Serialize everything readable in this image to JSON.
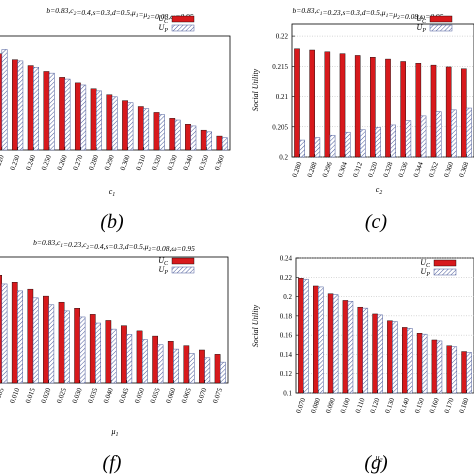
{
  "colors": {
    "uc_fill": "#d7191c",
    "up_stroke": "#4a5a9a",
    "axis": "#000000",
    "grid": "#b0b0b0"
  },
  "captions": [
    "(b)",
    "(c)",
    "(f)",
    "(g)"
  ],
  "chart_data": [
    {
      "id": "b",
      "type": "bar",
      "title": "b=0.83,c2=0.4,s=0.3,d=0.5,μ1=μ2=0.08,ω=0.95",
      "xlabel": "c1",
      "ylabel": "",
      "categories": [
        "0.220",
        "0.230",
        "0.240",
        "0.250",
        "0.260",
        "0.270",
        "0.280",
        "0.290",
        "0.300",
        "0.310",
        "0.320",
        "0.330",
        "0.340",
        "0.350",
        "0.360"
      ],
      "ylim": [
        0.201,
        0.228
      ],
      "grid": true,
      "legend": "top-right",
      "series": [
        {
          "name": "UC",
          "values": [
            0.2238,
            0.2224,
            0.221,
            0.2196,
            0.2182,
            0.2169,
            0.2155,
            0.2141,
            0.2127,
            0.2113,
            0.2099,
            0.2085,
            0.2071,
            0.2057,
            0.2043
          ]
        },
        {
          "name": "UP",
          "values": [
            0.2248,
            0.2221,
            0.2206,
            0.2192,
            0.2178,
            0.2164,
            0.215,
            0.2136,
            0.2122,
            0.2108,
            0.2094,
            0.2081,
            0.2067,
            0.2053,
            0.2039
          ]
        }
      ]
    },
    {
      "id": "c",
      "type": "bar",
      "title": "b=0.83,c1=0.23,s=0.3,d=0.5,μ1=μ2=0.08,ω=0.95",
      "xlabel": "c2",
      "ylabel": "Social Utility",
      "categories": [
        "0.280",
        "0.288",
        "0.296",
        "0.304",
        "0.312",
        "0.320",
        "0.328",
        "0.336",
        "0.344",
        "0.352",
        "0.360",
        "0.368"
      ],
      "yticks": [
        "0.2",
        "0.205",
        "0.21",
        "0.215",
        "0.22"
      ],
      "ylim": [
        0.2,
        0.222
      ],
      "grid": true,
      "legend": "top-right",
      "series": [
        {
          "name": "UC",
          "values": [
            0.2179,
            0.2177,
            0.2174,
            0.2171,
            0.2168,
            0.2165,
            0.2162,
            0.2158,
            0.2155,
            0.2152,
            0.2149,
            0.2146
          ]
        },
        {
          "name": "UP",
          "values": [
            0.2028,
            0.2032,
            0.2036,
            0.2041,
            0.2045,
            0.2049,
            0.2053,
            0.206,
            0.2068,
            0.2075,
            0.2078,
            0.2081
          ]
        }
      ]
    },
    {
      "id": "f",
      "type": "bar",
      "title": "b=0.83,c1=0.23,c2=0.4,s=0.3,d=0.5,μ2=0.08,ω=0.95",
      "xlabel": "μ1",
      "ylabel": "",
      "categories": [
        "0.005",
        "0.010",
        "0.015",
        "0.020",
        "0.025",
        "0.030",
        "0.035",
        "0.040",
        "0.045",
        "0.050",
        "0.055",
        "0.060",
        "0.065",
        "0.070",
        "0.075"
      ],
      "ylim": [
        0.1,
        0.245
      ],
      "grid": true,
      "legend": "top-right",
      "series": [
        {
          "name": "UC",
          "values": [
            0.224,
            0.216,
            0.208,
            0.2,
            0.193,
            0.186,
            0.179,
            0.172,
            0.166,
            0.16,
            0.154,
            0.148,
            0.143,
            0.138,
            0.133
          ]
        },
        {
          "name": "UP",
          "values": [
            0.214,
            0.206,
            0.198,
            0.19,
            0.183,
            0.176,
            0.169,
            0.162,
            0.156,
            0.15,
            0.144,
            0.139,
            0.134,
            0.129,
            0.124
          ]
        }
      ]
    },
    {
      "id": "g",
      "type": "bar",
      "title": "",
      "xlabel": "μ2",
      "ylabel": "Social Utility",
      "categories": [
        "0.070",
        "0.080",
        "0.090",
        "0.100",
        "0.110",
        "0.120",
        "0.130",
        "0.140",
        "0.150",
        "0.160",
        "0.170",
        "0.180"
      ],
      "yticks": [
        "0.1",
        "0.12",
        "0.14",
        "0.16",
        "0.18",
        "0.2",
        "0.22",
        "0.24"
      ],
      "ylim": [
        0.1,
        0.24
      ],
      "grid": true,
      "legend": "top-right",
      "series": [
        {
          "name": "UC",
          "values": [
            0.219,
            0.211,
            0.203,
            0.196,
            0.189,
            0.182,
            0.175,
            0.168,
            0.162,
            0.155,
            0.149,
            0.143
          ]
        },
        {
          "name": "UP",
          "values": [
            0.218,
            0.21,
            0.202,
            0.195,
            0.188,
            0.181,
            0.174,
            0.167,
            0.161,
            0.154,
            0.148,
            0.142
          ]
        }
      ]
    }
  ]
}
